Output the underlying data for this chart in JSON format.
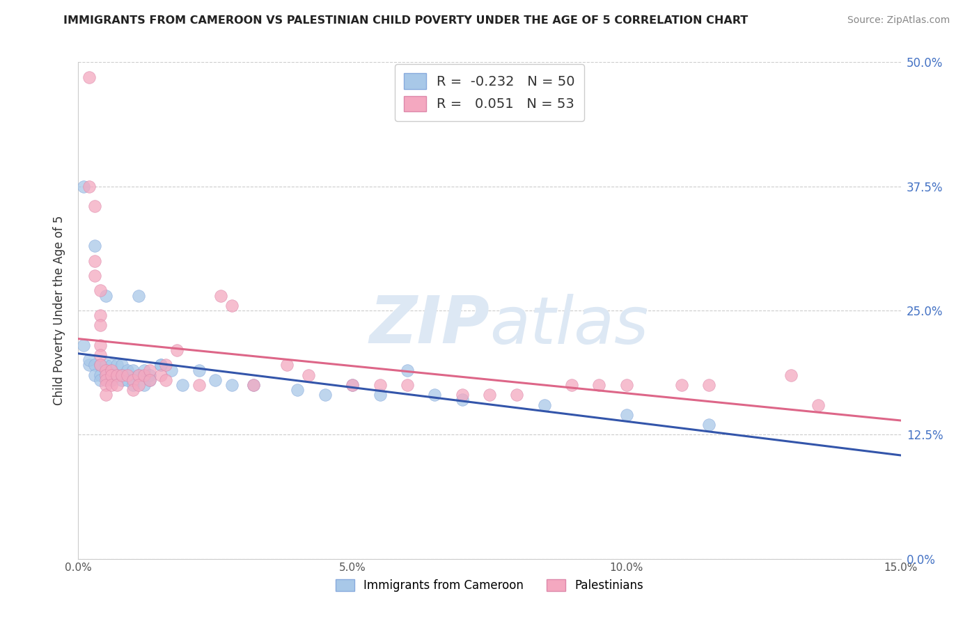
{
  "title": "IMMIGRANTS FROM CAMEROON VS PALESTINIAN CHILD POVERTY UNDER THE AGE OF 5 CORRELATION CHART",
  "source": "Source: ZipAtlas.com",
  "ylabel": "Child Poverty Under the Age of 5",
  "xlim": [
    0.0,
    0.15
  ],
  "ylim": [
    0.0,
    0.5
  ],
  "legend_bottom": [
    "Immigrants from Cameroon",
    "Palestinians"
  ],
  "blue_scatter_color": "#a8c8e8",
  "pink_scatter_color": "#f4a8c0",
  "blue_line_color": "#3355aa",
  "pink_line_color": "#dd6688",
  "watermark_color": "#dde8f4",
  "blue_points": [
    [
      0.001,
      0.215
    ],
    [
      0.001,
      0.375
    ],
    [
      0.002,
      0.195
    ],
    [
      0.002,
      0.2
    ],
    [
      0.003,
      0.195
    ],
    [
      0.003,
      0.185
    ],
    [
      0.003,
      0.315
    ],
    [
      0.004,
      0.195
    ],
    [
      0.004,
      0.185
    ],
    [
      0.004,
      0.18
    ],
    [
      0.005,
      0.195
    ],
    [
      0.005,
      0.185
    ],
    [
      0.005,
      0.265
    ],
    [
      0.006,
      0.195
    ],
    [
      0.006,
      0.185
    ],
    [
      0.006,
      0.18
    ],
    [
      0.007,
      0.195
    ],
    [
      0.007,
      0.185
    ],
    [
      0.008,
      0.195
    ],
    [
      0.008,
      0.185
    ],
    [
      0.008,
      0.18
    ],
    [
      0.009,
      0.19
    ],
    [
      0.009,
      0.18
    ],
    [
      0.01,
      0.19
    ],
    [
      0.01,
      0.175
    ],
    [
      0.011,
      0.265
    ],
    [
      0.011,
      0.185
    ],
    [
      0.012,
      0.19
    ],
    [
      0.012,
      0.175
    ],
    [
      0.013,
      0.185
    ],
    [
      0.013,
      0.18
    ],
    [
      0.015,
      0.195
    ],
    [
      0.015,
      0.195
    ],
    [
      0.017,
      0.19
    ],
    [
      0.019,
      0.175
    ],
    [
      0.022,
      0.19
    ],
    [
      0.025,
      0.18
    ],
    [
      0.028,
      0.175
    ],
    [
      0.032,
      0.175
    ],
    [
      0.04,
      0.17
    ],
    [
      0.045,
      0.165
    ],
    [
      0.05,
      0.175
    ],
    [
      0.055,
      0.165
    ],
    [
      0.06,
      0.19
    ],
    [
      0.065,
      0.165
    ],
    [
      0.07,
      0.16
    ],
    [
      0.085,
      0.155
    ],
    [
      0.1,
      0.145
    ],
    [
      0.115,
      0.135
    ]
  ],
  "pink_points": [
    [
      0.002,
      0.485
    ],
    [
      0.002,
      0.375
    ],
    [
      0.003,
      0.355
    ],
    [
      0.003,
      0.3
    ],
    [
      0.003,
      0.285
    ],
    [
      0.004,
      0.27
    ],
    [
      0.004,
      0.245
    ],
    [
      0.004,
      0.235
    ],
    [
      0.004,
      0.215
    ],
    [
      0.004,
      0.205
    ],
    [
      0.004,
      0.195
    ],
    [
      0.005,
      0.19
    ],
    [
      0.005,
      0.185
    ],
    [
      0.005,
      0.18
    ],
    [
      0.005,
      0.175
    ],
    [
      0.005,
      0.165
    ],
    [
      0.006,
      0.19
    ],
    [
      0.006,
      0.185
    ],
    [
      0.006,
      0.175
    ],
    [
      0.007,
      0.185
    ],
    [
      0.007,
      0.175
    ],
    [
      0.008,
      0.185
    ],
    [
      0.009,
      0.185
    ],
    [
      0.01,
      0.18
    ],
    [
      0.01,
      0.17
    ],
    [
      0.011,
      0.185
    ],
    [
      0.011,
      0.175
    ],
    [
      0.012,
      0.185
    ],
    [
      0.013,
      0.19
    ],
    [
      0.013,
      0.18
    ],
    [
      0.015,
      0.185
    ],
    [
      0.016,
      0.195
    ],
    [
      0.016,
      0.18
    ],
    [
      0.018,
      0.21
    ],
    [
      0.022,
      0.175
    ],
    [
      0.026,
      0.265
    ],
    [
      0.028,
      0.255
    ],
    [
      0.032,
      0.175
    ],
    [
      0.038,
      0.195
    ],
    [
      0.042,
      0.185
    ],
    [
      0.05,
      0.175
    ],
    [
      0.055,
      0.175
    ],
    [
      0.06,
      0.175
    ],
    [
      0.07,
      0.165
    ],
    [
      0.075,
      0.165
    ],
    [
      0.08,
      0.165
    ],
    [
      0.09,
      0.175
    ],
    [
      0.095,
      0.175
    ],
    [
      0.1,
      0.175
    ],
    [
      0.11,
      0.175
    ],
    [
      0.115,
      0.175
    ],
    [
      0.13,
      0.185
    ],
    [
      0.135,
      0.155
    ]
  ]
}
